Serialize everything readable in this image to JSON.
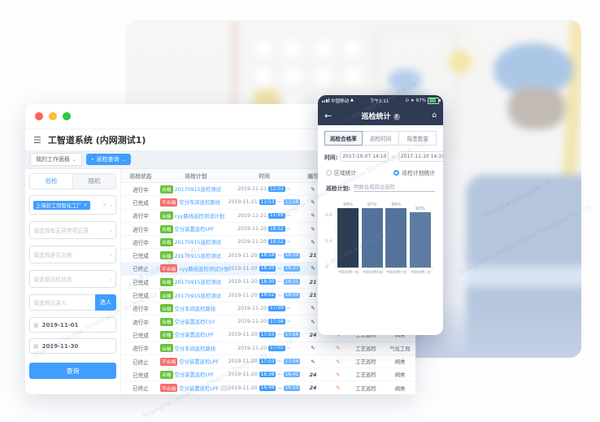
{
  "watermark": {
    "cn": "上海异工同智信息科技有限公司",
    "en": "Shanghai Inroad Information Technology Co., Ltd."
  },
  "colors": {
    "accent": "#409eff",
    "success": "#67c23a",
    "danger": "#f56c6c",
    "navy": "#2e3b52"
  },
  "desktop": {
    "menu_icon": "hamburger-menu",
    "window_title": "工智道系统 (内网测试1)",
    "tabs": [
      {
        "label": "我的工作面板"
      },
      {
        "label": "巡检查询",
        "active": true,
        "dot": "•"
      }
    ],
    "sidebar": {
      "tab_inspect": "巡检",
      "tab_random": "随机",
      "org_tag": "上海异工同智化工厂",
      "org_tag_close": "×",
      "filter1_placeholder": "请选择有无异常项记录",
      "filter2_placeholder": "请选择是否合格",
      "filter3_placeholder": "请选择巡检状态",
      "person_placeholder": "请选择记录人",
      "person_button": "选人",
      "date_start": "2019-11-01",
      "date_end": "2019-11-30",
      "search_button": "查询"
    },
    "table": {
      "headers": [
        "巡检状态",
        "巡检计划",
        "时间",
        "编写",
        "",
        "",
        ""
      ],
      "rows": [
        {
          "status": "进行中",
          "result": "合格",
          "plan": "20170915巡检测试",
          "date": "2019-11-21",
          "start": "12:03",
          "end": "",
          "w": "✎",
          "red": "",
          "type": "",
          "cat": "",
          "highlighted": false,
          "extra_tag": false
        },
        {
          "status": "已完成",
          "result": "不合格",
          "plan": "空分车间巡检路线",
          "date": "2019-11-21",
          "start": "11:53",
          "end": "11:58",
          "w": "✎",
          "red": "",
          "type": "",
          "cat": "",
          "highlighted": false,
          "extra_tag": false
        },
        {
          "status": "进行中",
          "result": "合格",
          "plan": "cyy路线巡检测试计划",
          "date": "2019-11-21",
          "start": "11:49",
          "end": "",
          "w": "✎",
          "red": "",
          "type": "",
          "cat": "",
          "highlighted": false,
          "extra_tag": false
        },
        {
          "status": "进行中",
          "result": "合格",
          "plan": "空分装置巡检LPF",
          "date": "2019-11-20",
          "start": "18:52",
          "end": "",
          "w": "✎",
          "red": "",
          "type": "",
          "cat": "",
          "highlighted": false,
          "extra_tag": false
        },
        {
          "status": "进行中",
          "result": "合格",
          "plan": "20170915巡检测试",
          "date": "2019-11-20",
          "start": "18:52",
          "end": "",
          "w": "✎",
          "red": "",
          "type": "",
          "cat": "",
          "highlighted": false,
          "extra_tag": false
        },
        {
          "status": "已完成",
          "result": "合格",
          "plan": "20170915巡检测试",
          "date": "2019-11-20",
          "start": "18:18",
          "end": "18:39",
          "w": "21",
          "red": "",
          "type": "",
          "cat": "",
          "highlighted": false,
          "extra_tag": false
        },
        {
          "status": "已终止",
          "result": "不合格",
          "plan": "cyy路线巡检测试计划",
          "date": "2019-11-20",
          "start": "18:35",
          "end": "18:37",
          "w": "✎",
          "red": "",
          "type": "",
          "cat": "",
          "highlighted": true,
          "extra_tag": false
        },
        {
          "status": "已完成",
          "result": "合格",
          "plan": "20170915巡检测试",
          "date": "2019-11-20",
          "start": "18:30",
          "end": "18:31",
          "w": "21",
          "red": "",
          "type": "",
          "cat": "",
          "highlighted": false,
          "extra_tag": false
        },
        {
          "status": "已完成",
          "result": "合格",
          "plan": "20170915巡检测试",
          "date": "2019-11-20",
          "start": "18:02",
          "end": "18:04",
          "w": "21",
          "red": "",
          "type": "",
          "cat": "",
          "highlighted": false,
          "extra_tag": false
        },
        {
          "status": "进行中",
          "result": "合格",
          "plan": "空分车间巡检路线",
          "date": "2019-11-20",
          "start": "17:59",
          "end": "",
          "w": "✎",
          "red": "",
          "type": "",
          "cat": "",
          "highlighted": false,
          "extra_tag": false
        },
        {
          "status": "进行中",
          "result": "合格",
          "plan": "空分装置巡检CSY",
          "date": "2019-11-20",
          "start": "17:58",
          "end": "",
          "w": "✎",
          "red": "",
          "type": "",
          "cat": "",
          "highlighted": false,
          "extra_tag": false
        },
        {
          "status": "已完成",
          "result": "合格",
          "plan": "空分装置巡检LPF",
          "date": "2019-11-20",
          "start": "17:55",
          "end": "17:56",
          "w": "24",
          "red": "✎",
          "type": "工艺巡检",
          "cat": "阀类",
          "highlighted": false,
          "extra_tag": false
        },
        {
          "status": "进行中",
          "result": "合格",
          "plan": "空分车间巡检路线",
          "date": "2019-11-20",
          "start": "17:01",
          "end": "",
          "w": "✎",
          "red": "✎",
          "type": "工艺巡检",
          "cat": "气化工段",
          "highlighted": false,
          "extra_tag": false
        },
        {
          "status": "已终止",
          "result": "不合格",
          "plan": "空分装置巡检LPF",
          "date": "2019-11-20",
          "start": "17:03",
          "end": "17:04",
          "w": "✎",
          "red": "✎",
          "type": "工艺巡检",
          "cat": "阀类",
          "highlighted": false,
          "extra_tag": false
        },
        {
          "status": "已完成",
          "result": "合格",
          "plan": "空分装置巡检LPF",
          "date": "2019-11-20",
          "start": "16:38",
          "end": "16:41",
          "w": "24",
          "red": "✎",
          "type": "工艺巡检",
          "cat": "阀类",
          "highlighted": false,
          "extra_tag": false
        },
        {
          "status": "已终止",
          "result": "不合格",
          "plan": "空分装置巡检LPF",
          "date": "2019-11-20",
          "start": "16:48",
          "end": "16:55",
          "w": "24",
          "red": "✎",
          "type": "工艺巡检",
          "cat": "阀类",
          "highlighted": false,
          "extra_tag": true
        }
      ]
    }
  },
  "phone": {
    "status_bar": {
      "carrier": "中国移动",
      "time": "下午2:11",
      "battery_pct": "67%"
    },
    "nav": {
      "back": "←",
      "title": "巡检统计",
      "info": "?",
      "home": "⌂"
    },
    "segments": [
      {
        "label": "巡检合格率",
        "active": true
      },
      {
        "label": "巡检时间",
        "active": false
      },
      {
        "label": "隐患数量",
        "active": false
      }
    ],
    "time_label": "时间:",
    "time_from": "2017-10-07 14:10",
    "tilde": "~",
    "time_to": "2017-11-10 14:10",
    "radio_area": "区域统计",
    "radio_plan": "巡检计划统计",
    "plan_label": "巡检计划:",
    "plan_value": "甲醇合成岗位巡检"
  },
  "chart_data": {
    "type": "bar",
    "title": "",
    "xlabel": "",
    "ylabel": "",
    "categories": [
      "甲醇装置一班",
      "甲醇装置四班",
      "甲醇装置三班",
      "甲醇装置二班"
    ],
    "values": [
      99,
      97,
      96,
      90
    ],
    "value_labels": [
      "99%",
      "97%",
      "96%",
      "90%"
    ],
    "unit": "%",
    "ylim": [
      0,
      1
    ],
    "yticks": [
      "0",
      "0.4",
      "0.8"
    ],
    "grid": false,
    "legend": "none",
    "bar_colors": [
      "#2c3e54",
      "#53739a",
      "#53739a",
      "#5d7ca3"
    ]
  }
}
